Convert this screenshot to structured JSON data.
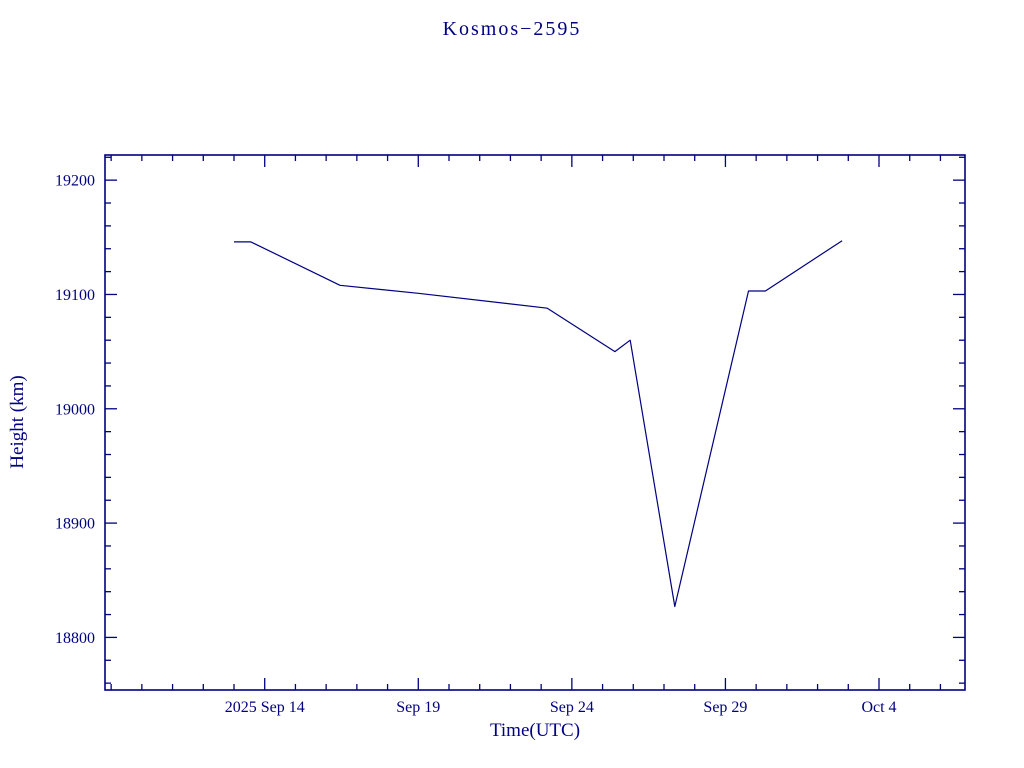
{
  "title": "Kosmos−2595",
  "chart_data": {
    "type": "line",
    "title": "Kosmos−2595",
    "xlabel": "Time(UTC)",
    "ylabel": "Height (km)",
    "line_color": "#000080",
    "axis_color": "#000080",
    "x_encoding": "day number in September 2025 (34 = Oct 4)",
    "x": [
      13.0,
      13.55,
      16.45,
      19.0,
      23.2,
      25.4,
      25.9,
      27.35,
      29.75,
      30.3,
      32.8
    ],
    "y": [
      19146,
      19146,
      19108,
      19101,
      19088,
      19050,
      19060,
      18827,
      19103,
      19103,
      19147
    ],
    "xlim": [
      8.8,
      36.8
    ],
    "ylim": [
      18754,
      19222
    ],
    "x_ticks": [
      {
        "value": 14,
        "label": "2025 Sep 14"
      },
      {
        "value": 19,
        "label": "Sep 19"
      },
      {
        "value": 24,
        "label": "Sep 24"
      },
      {
        "value": 29,
        "label": "Sep 29"
      },
      {
        "value": 34,
        "label": "Oct  4"
      }
    ],
    "y_ticks": [
      {
        "value": 18800,
        "label": "18800"
      },
      {
        "value": 18900,
        "label": "18900"
      },
      {
        "value": 19000,
        "label": "19000"
      },
      {
        "value": 19100,
        "label": "19100"
      },
      {
        "value": 19200,
        "label": "19200"
      }
    ],
    "x_minor_step": 1,
    "y_minor_step": 20,
    "grid": false,
    "legend": null
  }
}
